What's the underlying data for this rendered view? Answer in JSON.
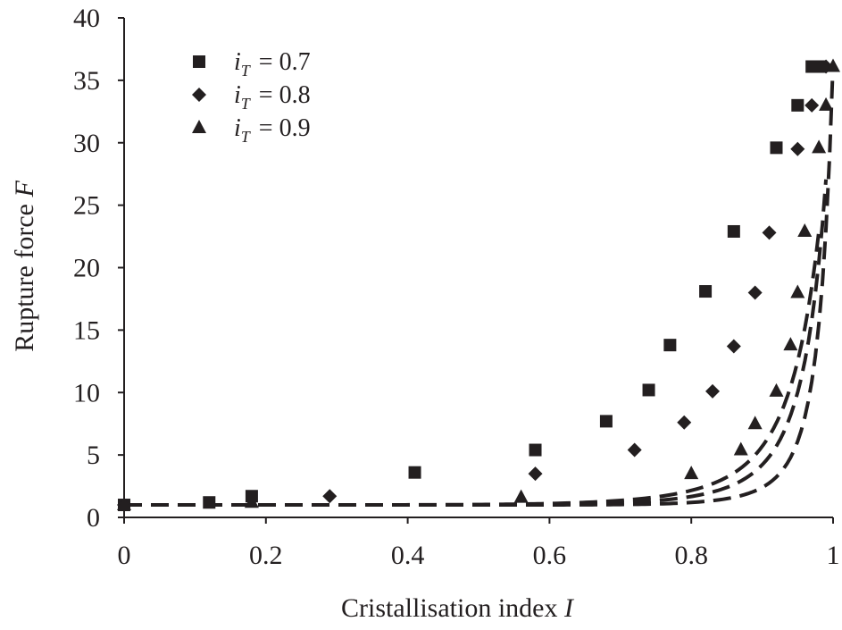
{
  "chart_data": {
    "type": "scatter",
    "title": "",
    "xlabel": "Cristallisation index ",
    "xlabel_symbol": "I",
    "ylabel": "Rupture force ",
    "ylabel_symbol": "F",
    "xlim": [
      0,
      1
    ],
    "ylim": [
      0,
      40
    ],
    "xticks": [
      "0",
      "0.2",
      "0.4",
      "0.6",
      "0.8",
      "1"
    ],
    "yticks": [
      "0",
      "5",
      "10",
      "15",
      "20",
      "25",
      "30",
      "35",
      "40"
    ],
    "grid": false,
    "legend_position": "top-left",
    "marker_color": "#231f20",
    "series": [
      {
        "legend_var": "i",
        "legend_sub": "T",
        "legend_value": "= 0.7",
        "marker": "square",
        "x": [
          0.0,
          0.12,
          0.18,
          0.41,
          0.58,
          0.68,
          0.74,
          0.77,
          0.82,
          0.86,
          0.92,
          0.95,
          0.97,
          0.98
        ],
        "y": [
          1.0,
          1.2,
          1.7,
          3.6,
          5.4,
          7.7,
          10.2,
          13.8,
          18.1,
          22.9,
          29.6,
          33.0,
          36.1,
          36.1
        ],
        "fit": {
          "a": 0.1445,
          "b": 3.602,
          "x_end": 0.98
        }
      },
      {
        "legend_var": "i",
        "legend_sub": "T",
        "legend_value": "= 0.8",
        "marker": "diamond",
        "x": [
          0.0,
          0.29,
          0.58,
          0.72,
          0.79,
          0.83,
          0.86,
          0.89,
          0.91,
          0.95,
          0.97,
          0.99
        ],
        "y": [
          1.0,
          1.7,
          3.5,
          5.4,
          7.6,
          10.1,
          13.7,
          18.0,
          22.8,
          29.5,
          33.0,
          36.1
        ],
        "fit": {
          "a": 0.1148,
          "b": 3.6,
          "x_end": 0.99
        }
      },
      {
        "legend_var": "i",
        "legend_sub": "T",
        "legend_value": "= 0.9",
        "marker": "triangle",
        "x": [
          0.0,
          0.18,
          0.56,
          0.8,
          0.87,
          0.89,
          0.92,
          0.94,
          0.95,
          0.96,
          0.98,
          0.99,
          1.0
        ],
        "y": [
          1.0,
          1.2,
          1.6,
          3.5,
          5.4,
          7.5,
          10.1,
          13.8,
          18.0,
          22.9,
          29.6,
          33.0,
          36.1
        ],
        "fit": {
          "a": 0.0745,
          "b": 3.594,
          "x_end": 1.0
        }
      }
    ]
  }
}
